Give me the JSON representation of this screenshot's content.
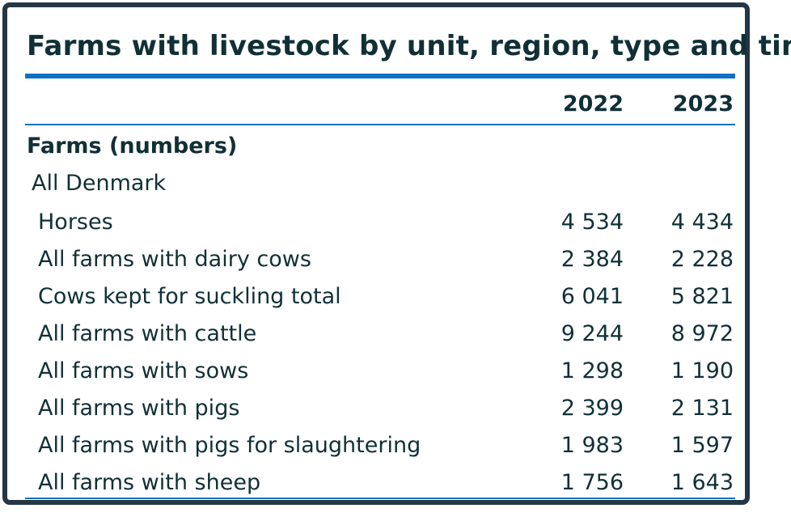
{
  "table": {
    "title": "Farms with livestock by unit, region, type and time",
    "years": [
      "2022",
      "2023"
    ],
    "section": "Farms (numbers)",
    "region": "All Denmark",
    "rows": [
      {
        "label": "Horses",
        "v2022": "4 534",
        "v2023": "4 434"
      },
      {
        "label": "All farms with dairy cows",
        "v2022": "2 384",
        "v2023": "2 228"
      },
      {
        "label": "Cows kept for suckling total",
        "v2022": "6 041",
        "v2023": "5 821"
      },
      {
        "label": "All farms with cattle",
        "v2022": "9 244",
        "v2023": "8 972"
      },
      {
        "label": "All farms with sows",
        "v2022": "1 298",
        "v2023": "1 190"
      },
      {
        "label": "All farms with pigs",
        "v2022": "2 399",
        "v2023": "2 131"
      },
      {
        "label": "All farms with pigs for slaughtering",
        "v2022": "1 983",
        "v2023": "1 597"
      },
      {
        "label": "All farms with sheep",
        "v2022": "1 756",
        "v2023": "1 643"
      }
    ]
  },
  "colors": {
    "accent": "#0e72c4",
    "text": "#103036",
    "frame": "#253645"
  }
}
